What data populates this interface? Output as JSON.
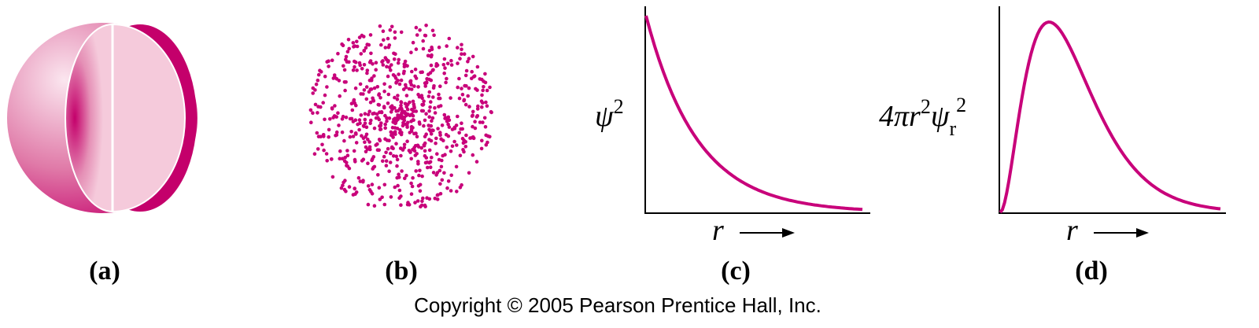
{
  "panels": [
    {
      "label": "(a)"
    },
    {
      "label": "(b)"
    },
    {
      "label": "(c)",
      "y_label": {
        "base": "ψ",
        "sup": "2"
      },
      "x_label": "r"
    },
    {
      "label": "(d)",
      "y_label": {
        "base": "4πr",
        "sup": "2",
        "base2": "ψ",
        "sub2": "r",
        "sup2": "2"
      },
      "x_label": "r"
    }
  ],
  "copyright": "Copyright © 2005 Pearson Prentice Hall, Inc."
}
